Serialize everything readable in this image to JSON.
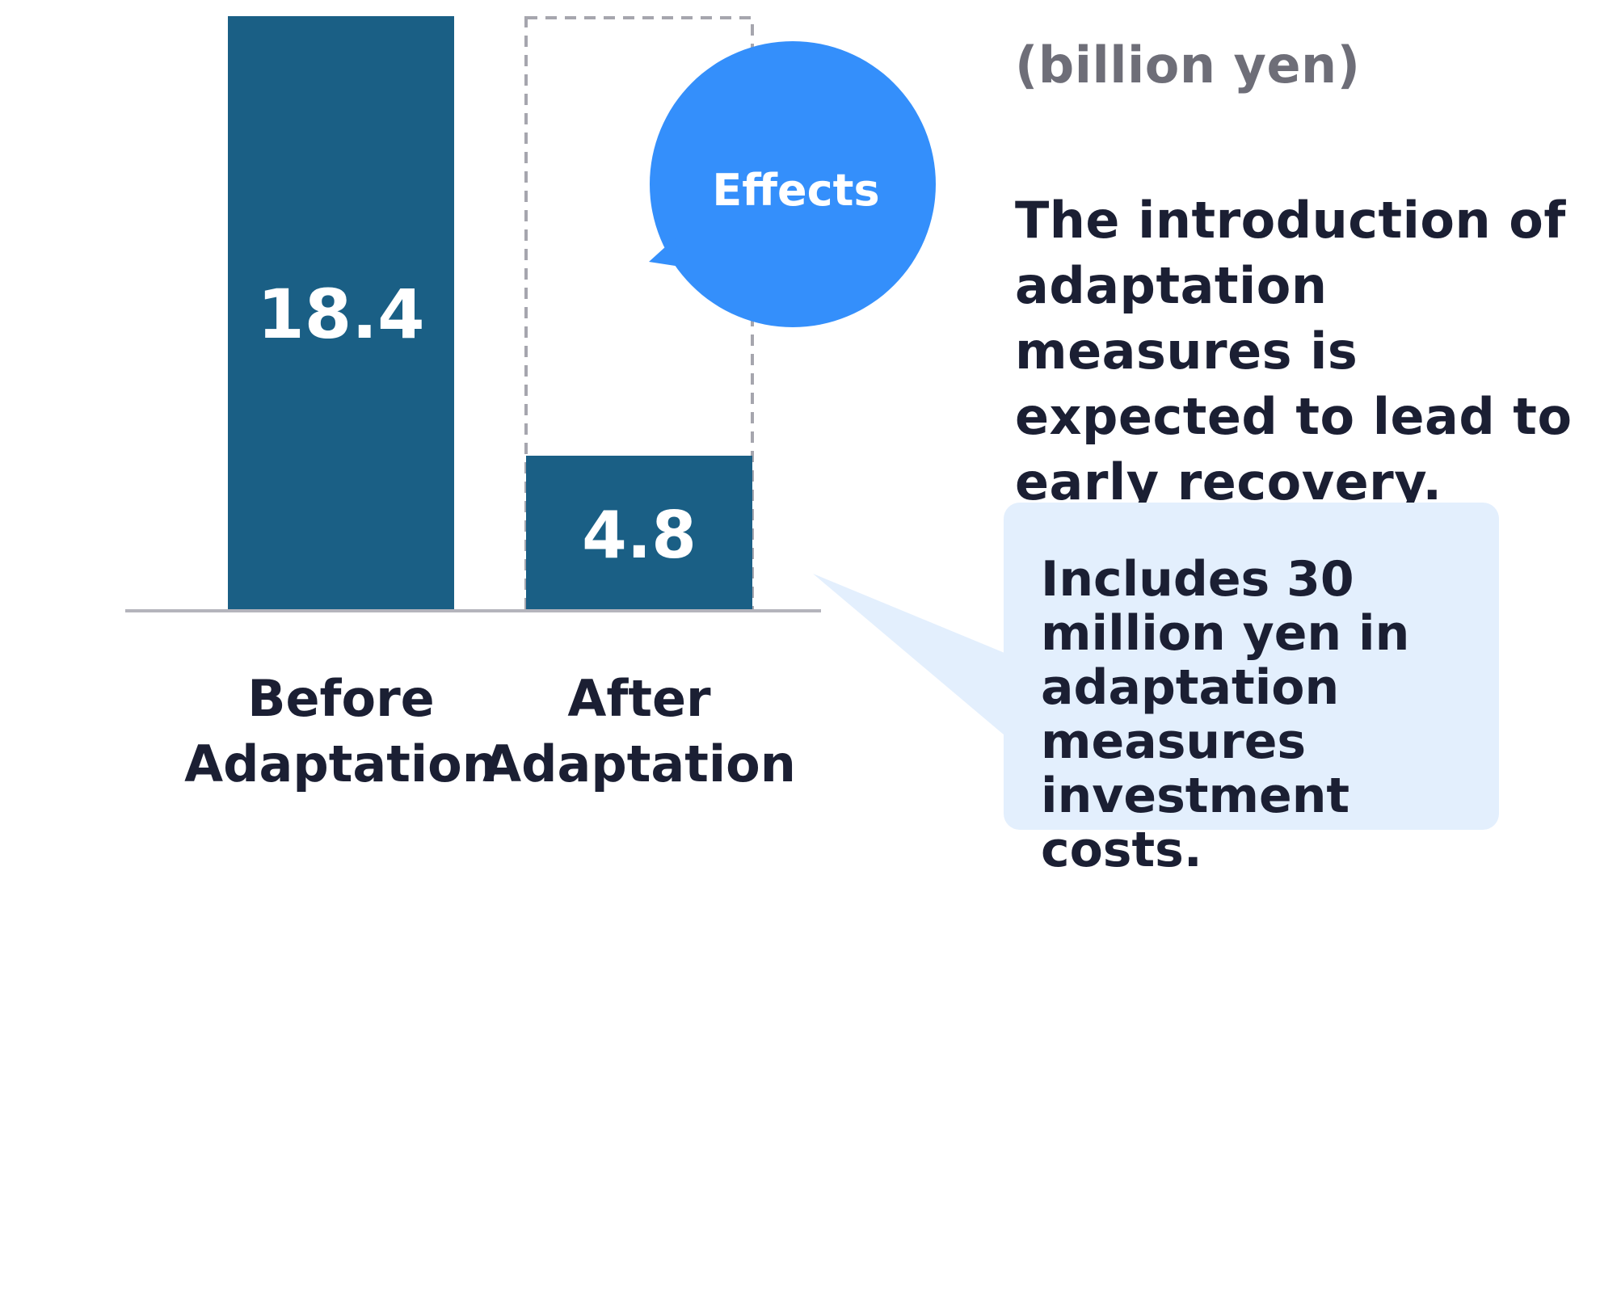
{
  "chart_data": {
    "type": "bar",
    "unit": "(billion yen)",
    "categories": [
      [
        "Before",
        "Adaptation"
      ],
      [
        "After",
        "Adaptation"
      ]
    ],
    "values": [
      18.4,
      4.8
    ],
    "value_labels": [
      "18.4",
      "4.8"
    ],
    "baseline_reference": {
      "category_index": 1,
      "value": 18.4,
      "style": "dashed-outline"
    },
    "callout": "Effects",
    "title": "",
    "xlabel": "",
    "ylabel": "",
    "ylim": [
      0,
      18.4
    ],
    "grid": false,
    "legend": "none"
  },
  "text": {
    "headline": "The introduction of adaptation measures is expected to lead to early recovery.",
    "note": "Includes 30 million yen in adaptation measures investment costs."
  },
  "colors": {
    "bar": "#1a5f85",
    "callout_bubble": "#348ffb",
    "note_background": "#e3effd",
    "axis": "#b4b4bc",
    "dashed_outline": "#a6a6ae",
    "text_dark": "#1b1f33",
    "text_muted": "#6e6e78",
    "label_on_bar": "#ffffff"
  }
}
